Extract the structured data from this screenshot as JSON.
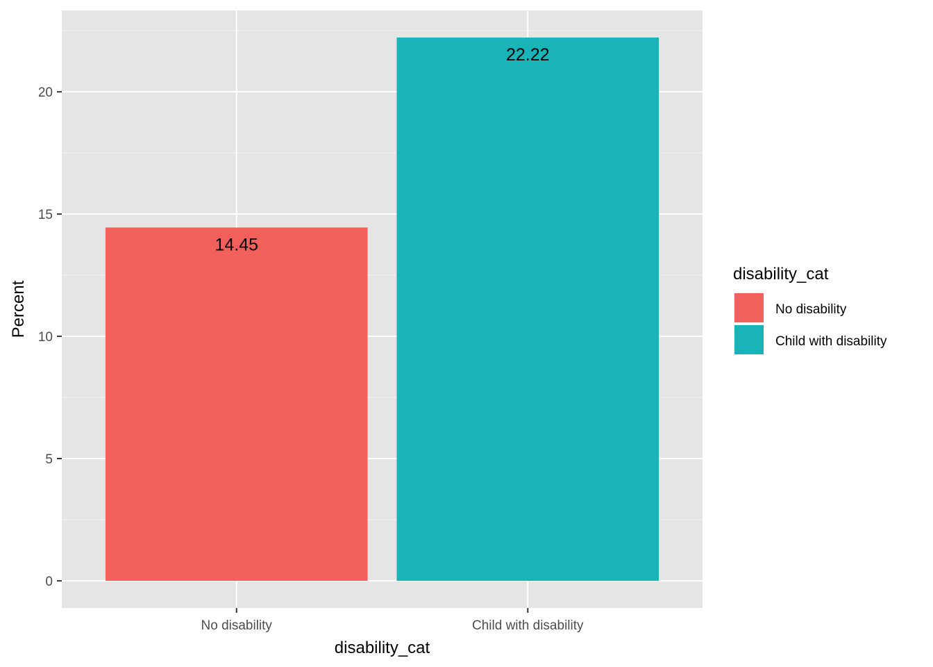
{
  "chart_data": {
    "type": "bar",
    "categories": [
      "No disability",
      "Child with disability"
    ],
    "values": [
      14.45,
      22.22
    ],
    "data_labels": [
      "14.45",
      "22.22"
    ],
    "colors": [
      "#F8766D",
      "#00BFC4"
    ],
    "display_colors": [
      "#F2605B",
      "#1AB3B7"
    ],
    "xlabel": "disability_cat",
    "ylabel": "Percent",
    "ylim": [
      -1.11,
      23.33
    ],
    "yticks": [
      0,
      5,
      10,
      15,
      20
    ],
    "ytick_labels": [
      "0",
      "5",
      "10",
      "15",
      "20"
    ],
    "grid": true,
    "legend": {
      "title": "disability_cat",
      "position": "right",
      "entries": [
        "No disability",
        "Child with disability"
      ]
    }
  }
}
